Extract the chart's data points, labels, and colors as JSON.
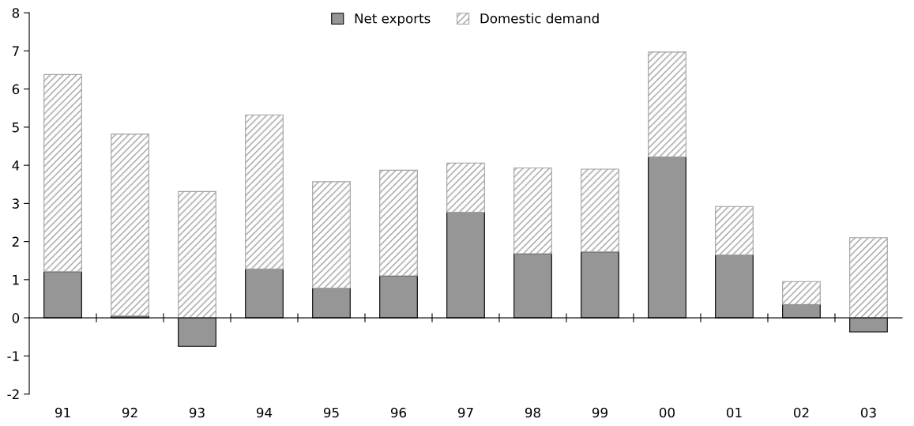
{
  "chart_data": {
    "type": "bar",
    "stacked": true,
    "categories": [
      "91",
      "92",
      "93",
      "94",
      "95",
      "96",
      "97",
      "98",
      "99",
      "00",
      "01",
      "02",
      "03"
    ],
    "series": [
      {
        "name": "Net exports",
        "color": "#969696",
        "values": [
          1.21,
          0.05,
          -0.75,
          1.28,
          0.78,
          1.1,
          2.77,
          1.68,
          1.73,
          4.22,
          1.65,
          0.35,
          -0.37
        ]
      },
      {
        "name": "Domestic demand",
        "color": "#a0a0a0",
        "values": [
          5.17,
          4.77,
          3.31,
          4.04,
          2.79,
          2.77,
          1.29,
          2.25,
          2.17,
          2.75,
          1.27,
          0.6,
          2.1
        ]
      }
    ],
    "ylim": [
      -2,
      8
    ],
    "yticks": [
      -2,
      -1,
      0,
      1,
      2,
      3,
      4,
      5,
      6,
      7,
      8
    ],
    "legend": "top"
  }
}
